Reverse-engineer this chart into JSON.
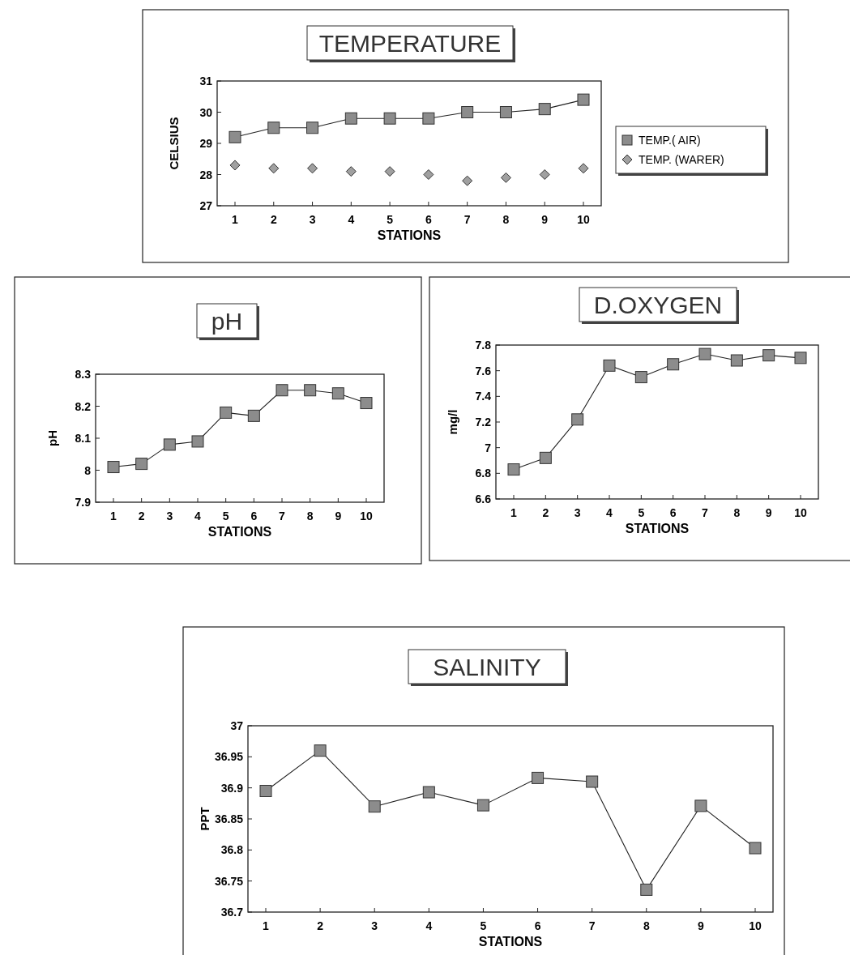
{
  "chart_data": [
    {
      "type": "line",
      "title": "TEMPERATURE",
      "xlabel": "STATIONS",
      "ylabel": "CELSIUS",
      "categories": [
        "1",
        "2",
        "3",
        "4",
        "5",
        "6",
        "7",
        "8",
        "9",
        "10"
      ],
      "ylim": [
        27,
        31
      ],
      "yticks": [
        27,
        28,
        29,
        30,
        31
      ],
      "legend": "right",
      "series": [
        {
          "name": "TEMP.( AIR)",
          "type": "line",
          "marker": "square",
          "color": "#8c8c8c",
          "values": [
            29.2,
            29.5,
            29.5,
            29.8,
            29.8,
            29.8,
            30.0,
            30.0,
            30.1,
            30.4
          ]
        },
        {
          "name": "TEMP. (WARER)",
          "type": "scatter",
          "marker": "diamond",
          "color": "#a0a0a0",
          "values": [
            28.3,
            28.2,
            28.2,
            28.1,
            28.1,
            28.0,
            27.8,
            27.9,
            28.0,
            28.2
          ]
        }
      ]
    },
    {
      "type": "line",
      "title": "pH",
      "xlabel": "STATIONS",
      "ylabel": "pH",
      "categories": [
        "1",
        "2",
        "3",
        "4",
        "5",
        "6",
        "7",
        "8",
        "9",
        "10"
      ],
      "ylim": [
        7.9,
        8.3
      ],
      "yticks": [
        7.9,
        8,
        8.1,
        8.2,
        8.3
      ],
      "series": [
        {
          "type": "line",
          "marker": "square",
          "color": "#8c8c8c",
          "values": [
            8.01,
            8.02,
            8.08,
            8.09,
            8.18,
            8.17,
            8.25,
            8.25,
            8.24,
            8.21
          ]
        }
      ]
    },
    {
      "type": "line",
      "title": "D.OXYGEN",
      "xlabel": "STATIONS",
      "ylabel": "mg/l",
      "categories": [
        "1",
        "2",
        "3",
        "4",
        "5",
        "6",
        "7",
        "8",
        "9",
        "10"
      ],
      "ylim": [
        6.6,
        7.8
      ],
      "yticks": [
        6.6,
        6.8,
        7,
        7.2,
        7.4,
        7.6,
        7.8
      ],
      "series": [
        {
          "type": "line",
          "marker": "square",
          "color": "#8c8c8c",
          "values": [
            6.83,
            6.92,
            7.22,
            7.64,
            7.55,
            7.65,
            7.73,
            7.68,
            7.72,
            7.7
          ]
        }
      ]
    },
    {
      "type": "line",
      "title": "SALINITY",
      "xlabel": "STATIONS",
      "ylabel": "PPT",
      "categories": [
        "1",
        "2",
        "3",
        "4",
        "5",
        "6",
        "7",
        "8",
        "9",
        "10"
      ],
      "ylim": [
        36.7,
        37
      ],
      "yticks": [
        36.7,
        36.75,
        36.8,
        36.85,
        36.9,
        36.95,
        37
      ],
      "series": [
        {
          "type": "line",
          "marker": "square",
          "color": "#8c8c8c",
          "values": [
            36.895,
            36.96,
            36.87,
            36.893,
            36.872,
            36.916,
            36.91,
            36.736,
            36.871,
            36.803
          ]
        }
      ]
    }
  ]
}
